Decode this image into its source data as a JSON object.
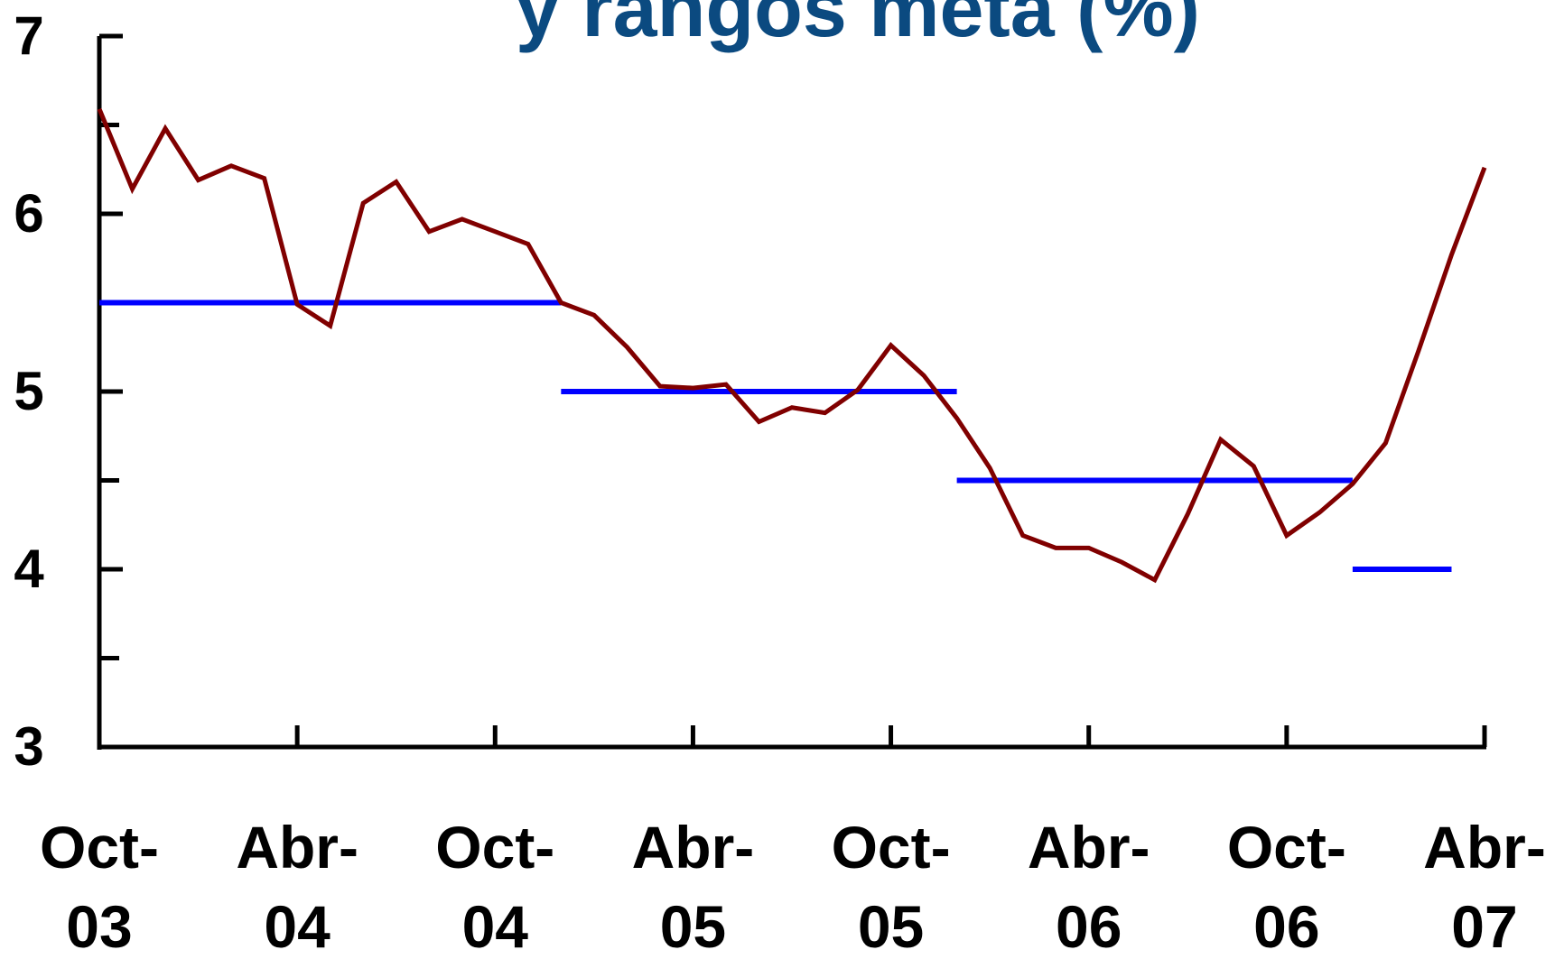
{
  "chart_data": {
    "type": "line",
    "title": "y rangos meta (%)",
    "categories": [
      "Oct-03",
      null,
      null,
      null,
      null,
      null,
      "Abr-04",
      null,
      null,
      null,
      null,
      null,
      "Oct-04",
      null,
      null,
      null,
      null,
      null,
      "Abr-05",
      null,
      null,
      null,
      null,
      null,
      "Oct-05",
      null,
      null,
      null,
      null,
      null,
      "Abr-06",
      null,
      null,
      null,
      null,
      null,
      "Oct-06",
      null,
      null,
      null,
      null,
      null,
      "Abr-07"
    ],
    "series": [
      {
        "color": "#800000",
        "values": [
          6.59,
          6.14,
          6.48,
          6.19,
          6.27,
          6.2,
          5.49,
          5.37,
          6.06,
          6.18,
          5.9,
          5.97,
          5.9,
          5.83,
          5.5,
          5.43,
          5.25,
          5.03,
          5.02,
          5.04,
          4.83,
          4.91,
          4.88,
          5.01,
          5.26,
          5.09,
          4.85,
          4.57,
          4.19,
          4.12,
          4.12,
          4.04,
          3.94,
          4.31,
          4.73,
          4.58,
          4.19,
          4.32,
          4.48,
          4.71,
          5.23,
          5.77,
          6.26
        ]
      }
    ],
    "target_ranges": {
      "color": "#0000ff",
      "segments": [
        {
          "value": 5.5,
          "x": [
            0,
            14
          ]
        },
        {
          "value": 5.0,
          "x": [
            14,
            26
          ]
        },
        {
          "value": 4.5,
          "x": [
            26,
            38
          ]
        },
        {
          "value": 4.0,
          "x": [
            38,
            41
          ]
        }
      ]
    },
    "ylim": [
      3,
      7
    ],
    "yticks": [
      3,
      4,
      5,
      6,
      7
    ],
    "minor_yticks": [
      3.5,
      4.5,
      5.5,
      6.5
    ],
    "title_color": "#0b4a80"
  }
}
